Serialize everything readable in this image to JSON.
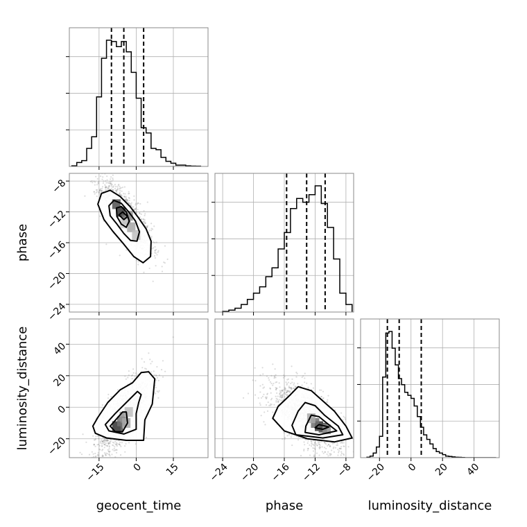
{
  "chart_data": {
    "type": "corner",
    "params": [
      "geocent_time",
      "phase",
      "luminosity_distance"
    ],
    "axis_labels": {
      "geocent_time": "geocent_time",
      "phase": "phase",
      "luminosity_distance": "luminosity_distance"
    },
    "ticks": {
      "geocent_time": [
        -15,
        0,
        15
      ],
      "phase": [
        -24,
        -20,
        -16,
        -12,
        -8
      ],
      "luminosity_distance": [
        -20,
        0,
        20,
        40
      ]
    },
    "tick_text": {
      "geocent_time": [
        "−15",
        "0",
        "15"
      ],
      "phase": [
        "−24",
        "−20",
        "−16",
        "−12",
        "−8"
      ],
      "luminosity_distance": [
        "−20",
        "0",
        "20",
        "40"
      ]
    },
    "ranges": {
      "geocent_time": [
        -27,
        29
      ],
      "phase": [
        -25,
        -7
      ],
      "luminosity_distance": [
        -32,
        56
      ]
    },
    "grid": true,
    "colors": {
      "line": "#000000",
      "grid": "#b0b0b0",
      "points": "#808080"
    },
    "histograms": {
      "geocent_time": {
        "edges": [
          -26,
          -24,
          -22,
          -20,
          -18,
          -16,
          -14,
          -12,
          -10,
          -8,
          -6,
          -4,
          -2,
          0,
          2,
          4,
          6,
          8,
          10,
          12,
          14,
          16,
          18,
          20,
          22,
          24,
          26
        ],
        "counts": [
          0.005,
          0.03,
          0.045,
          0.14,
          0.23,
          0.54,
          0.84,
          0.98,
          0.97,
          0.93,
          0.97,
          0.89,
          0.73,
          0.53,
          0.3,
          0.26,
          0.14,
          0.13,
          0.07,
          0.04,
          0.025,
          0.01,
          0.01,
          0.005,
          0.003,
          0.002
        ],
        "quantiles": [
          -10,
          -5,
          3
        ]
      },
      "phase": {
        "edges": [
          -24,
          -23.2,
          -22.4,
          -21.6,
          -20.8,
          -20,
          -19.2,
          -18.4,
          -17.6,
          -16.8,
          -16,
          -15.2,
          -14.4,
          -13.6,
          -12.8,
          -12,
          -11.2,
          -10.4,
          -9.6,
          -8.8,
          -8,
          -7.2
        ],
        "counts": [
          0.005,
          0.015,
          0.03,
          0.06,
          0.1,
          0.15,
          0.2,
          0.28,
          0.35,
          0.5,
          0.63,
          0.82,
          0.9,
          0.87,
          0.93,
          1.0,
          0.86,
          0.67,
          0.42,
          0.15,
          0.06
        ],
        "quantiles": [
          -15.7,
          -13.1,
          -10.7
        ]
      },
      "luminosity_distance": {
        "edges": [
          -28,
          -26,
          -24,
          -22,
          -20,
          -18,
          -16,
          -14,
          -12,
          -10,
          -8,
          -6,
          -4,
          -2,
          0,
          2,
          4,
          6,
          8,
          10,
          12,
          14,
          16,
          18,
          20,
          22,
          24,
          26,
          28,
          30,
          32,
          34,
          36,
          38,
          40,
          42,
          44,
          46,
          48,
          50,
          52,
          54
        ],
        "counts": [
          0.003,
          0.01,
          0.03,
          0.07,
          0.14,
          0.53,
          0.82,
          0.83,
          0.72,
          0.61,
          0.52,
          0.48,
          0.43,
          0.41,
          0.39,
          0.34,
          0.27,
          0.2,
          0.15,
          0.12,
          0.09,
          0.06,
          0.04,
          0.03,
          0.02,
          0.01,
          0.008,
          0.005,
          0.003,
          0.002,
          0.001,
          0,
          0,
          0,
          0,
          0,
          0,
          0,
          0,
          0,
          0
        ],
        "quantiles": [
          -15,
          -7.5,
          6.5
        ]
      }
    },
    "pairs": [
      {
        "x": "geocent_time",
        "y": "phase",
        "center": [
          -4,
          -12.8
        ],
        "sigma": [
          5.2,
          2.4
        ],
        "rho": -0.78,
        "n_points": 1500,
        "contours": [
          [
            [
              -15.5,
              -11.0
            ],
            [
              -14.0,
              -9.6
            ],
            [
              -10.5,
              -9.2
            ],
            [
              -6.5,
              -10.0
            ],
            [
              -2.5,
              -11.3
            ],
            [
              1.0,
              -12.8
            ],
            [
              4.0,
              -14.2
            ],
            [
              6.0,
              -15.8
            ],
            [
              5.8,
              -17.8
            ],
            [
              2.8,
              -18.6
            ],
            [
              -1.0,
              -17.8
            ],
            [
              -5.0,
              -16.2
            ],
            [
              -9.5,
              -14.5
            ],
            [
              -13.0,
              -13.0
            ]
          ],
          [
            [
              -11.0,
              -11.2
            ],
            [
              -9.0,
              -10.5
            ],
            [
              -6.0,
              -10.9
            ],
            [
              -3.0,
              -12.0
            ],
            [
              -0.3,
              -13.2
            ],
            [
              1.3,
              -14.6
            ],
            [
              0.3,
              -15.8
            ],
            [
              -2.3,
              -15.7
            ],
            [
              -5.0,
              -14.8
            ],
            [
              -8.0,
              -13.5
            ],
            [
              -10.5,
              -12.5
            ]
          ],
          [
            [
              -8.0,
              -11.5
            ],
            [
              -6.0,
              -11.3
            ],
            [
              -4.0,
              -12.0
            ],
            [
              -2.8,
              -13.2
            ],
            [
              -4.0,
              -14.0
            ],
            [
              -6.0,
              -13.6
            ],
            [
              -7.8,
              -12.6
            ]
          ],
          [
            [
              -7.0,
              -12.4
            ],
            [
              -5.5,
              -12.0
            ],
            [
              -3.5,
              -12.6
            ],
            [
              -5.0,
              -13.0
            ]
          ]
        ],
        "hist2d": [
          [
            -6,
            -12
          ],
          [
            -8,
            -11
          ],
          [
            -4,
            -13
          ],
          [
            -3,
            -12.5
          ],
          [
            -2,
            -14
          ],
          [
            0,
            -15
          ],
          [
            -5,
            -13.5
          ]
        ]
      },
      {
        "x": "geocent_time",
        "y": "luminosity_distance",
        "center": [
          -5,
          -5
        ],
        "sigma": [
          5.5,
          12
        ],
        "rho": 0.72,
        "n_points": 1500,
        "contours": [
          [
            [
              -17.5,
              -12.0
            ],
            [
              -16.5,
              -16.5
            ],
            [
              -12.0,
              -19.5
            ],
            [
              -4.0,
              -21.0
            ],
            [
              3.0,
              -21.0
            ],
            [
              3.5,
              -8.0
            ],
            [
              6.5,
              2.0
            ],
            [
              7.5,
              18.0
            ],
            [
              5.0,
              22.5
            ],
            [
              2.0,
              22.0
            ],
            [
              -1.5,
              15.5
            ],
            [
              -6.5,
              11.0
            ],
            [
              -11.5,
              3.0
            ],
            [
              -15.5,
              -6.5
            ]
          ],
          [
            [
              -12.5,
              -11.0
            ],
            [
              -11.0,
              -15.0
            ],
            [
              -5.0,
              -17.0
            ],
            [
              0.0,
              -14.0
            ],
            [
              0.0,
              -4.0
            ],
            [
              1.0,
              3.0
            ],
            [
              2.0,
              8.0
            ],
            [
              0.5,
              10.0
            ],
            [
              -4.0,
              3.0
            ],
            [
              -8.5,
              -4.0
            ]
          ],
          [
            [
              -10.5,
              -12.0
            ],
            [
              -8.5,
              -15.5
            ],
            [
              -5.5,
              -15.5
            ],
            [
              -3.5,
              -10.0
            ],
            [
              -4.0,
              -3.0
            ],
            [
              -5.5,
              -3.0
            ],
            [
              -8.0,
              -7.5
            ]
          ]
        ],
        "hist2d": [
          [
            -8,
            -12
          ],
          [
            -7,
            -13
          ],
          [
            -6,
            -9
          ],
          [
            -5,
            -6
          ],
          [
            -4,
            -10
          ],
          [
            -3,
            -3
          ]
        ]
      },
      {
        "x": "phase",
        "y": "luminosity_distance",
        "center": [
          -13,
          -6
        ],
        "sigma": [
          2.3,
          11
        ],
        "rho": -0.62,
        "n_points": 1500,
        "contours": [
          [
            [
              -16.8,
              0.5
            ],
            [
              -15.2,
              8.0
            ],
            [
              -14.2,
              13.0
            ],
            [
              -12.5,
              10.5
            ],
            [
              -11.0,
              4.0
            ],
            [
              -9.5,
              -2.5
            ],
            [
              -8.0,
              -12.0
            ],
            [
              -7.2,
              -19.5
            ],
            [
              -9.5,
              -22.0
            ],
            [
              -13.0,
              -20.0
            ],
            [
              -16.0,
              -15.0
            ],
            [
              -17.5,
              -7.0
            ]
          ],
          [
            [
              -15.0,
              -11.5
            ],
            [
              -14.2,
              -2.5
            ],
            [
              -13.3,
              3.0
            ],
            [
              -12.0,
              1.0
            ],
            [
              -10.8,
              -5.0
            ],
            [
              -9.0,
              -12.0
            ],
            [
              -8.4,
              -17.5
            ],
            [
              -11.0,
              -19.5
            ],
            [
              -14.5,
              -17.5
            ]
          ],
          [
            [
              -13.2,
              -12.0
            ],
            [
              -12.5,
              -5.0
            ],
            [
              -11.5,
              -6.0
            ],
            [
              -10.5,
              -10.0
            ],
            [
              -9.2,
              -15.0
            ],
            [
              -11.5,
              -17.5
            ],
            [
              -13.3,
              -16.0
            ]
          ],
          [
            [
              -12.0,
              -13.0
            ],
            [
              -11.5,
              -11.0
            ],
            [
              -10.2,
              -12.5
            ],
            [
              -11.0,
              -14.0
            ]
          ]
        ],
        "hist2d": [
          [
            -11.5,
            -12
          ],
          [
            -11,
            -13
          ],
          [
            -12,
            -10
          ],
          [
            -10.5,
            -14
          ],
          [
            -12.5,
            -7
          ]
        ]
      }
    ]
  }
}
